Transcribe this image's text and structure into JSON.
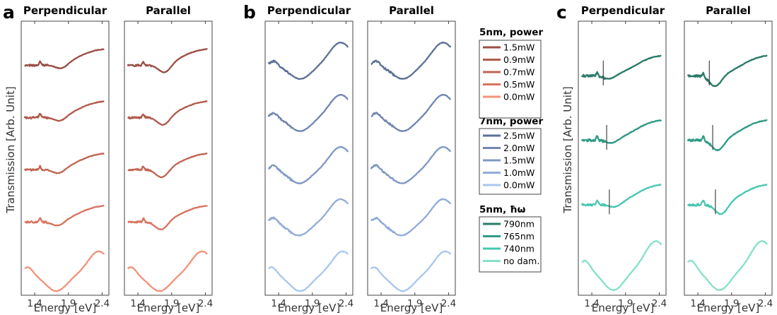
{
  "chart_data": [
    {
      "type": "line",
      "panel_label": "a",
      "ylabel": "Transmission [Arb. Unit]",
      "subplots": [
        {
          "title": "Perpendicular",
          "xlabel": "Energy [eV]",
          "xlim": [
            1.2,
            2.5
          ],
          "xticks": [
            1.4,
            1.9,
            2.4
          ],
          "xtick_labels": [
            "1.4",
            "1.9",
            "2.4"
          ],
          "dip_scale": 0.55
        },
        {
          "title": "Parallel",
          "xlabel": "Energy [eV]",
          "xlim": [
            1.2,
            2.5
          ],
          "xticks": [
            1.4,
            1.9,
            2.4
          ],
          "xtick_labels": [
            "1.4",
            "1.9",
            "2.4"
          ],
          "dip_scale": 1.0
        }
      ],
      "series": [
        {
          "name": "1.5mW",
          "color": "#9b4f46",
          "kind": "damaged",
          "dip_energy": 1.8,
          "markers": []
        },
        {
          "name": "0.9mW",
          "color": "#b05a4c",
          "kind": "damaged",
          "dip_energy": 1.78,
          "markers": []
        },
        {
          "name": "0.7mW",
          "color": "#c06553",
          "kind": "damaged",
          "dip_energy": 1.76,
          "markers": []
        },
        {
          "name": "0.5mW",
          "color": "#d8735f",
          "kind": "damaged",
          "dip_energy": 1.75,
          "markers": []
        },
        {
          "name": "0.0mW",
          "color": "#f1937a",
          "kind": "undamaged",
          "dip_energy": 1.72,
          "markers": []
        }
      ]
    },
    {
      "type": "line",
      "panel_label": "b",
      "ylabel": "",
      "subplots": [
        {
          "title": "Perpendicular",
          "xlabel": "Energy [eV]",
          "xlim": [
            1.2,
            2.5
          ],
          "xticks": [
            1.4,
            1.9,
            2.4
          ],
          "xtick_labels": [
            "1.4",
            "1.9",
            "2.4"
          ],
          "dip_scale": 1.0
        },
        {
          "title": "Parallel",
          "xlabel": "Energy [eV]",
          "xlim": [
            1.2,
            2.5
          ],
          "xticks": [
            1.4,
            1.9,
            2.4
          ],
          "xtick_labels": [
            "1.4",
            "1.9",
            "2.4"
          ],
          "dip_scale": 1.0
        }
      ],
      "series": [
        {
          "name": "2.5mW",
          "color": "#5e7198",
          "kind": "blue",
          "dip_energy": 1.72,
          "markers": []
        },
        {
          "name": "2.0mW",
          "color": "#7186af",
          "kind": "blue",
          "dip_energy": 1.72,
          "markers": []
        },
        {
          "name": "1.5mW",
          "color": "#7f98c5",
          "kind": "blue",
          "dip_energy": 1.71,
          "markers": []
        },
        {
          "name": "1.0mW",
          "color": "#92acd8",
          "kind": "blue",
          "dip_energy": 1.7,
          "markers": []
        },
        {
          "name": "0.0mW",
          "color": "#aac6ec",
          "kind": "undamaged",
          "dip_energy": 1.7,
          "markers": []
        }
      ]
    },
    {
      "type": "line",
      "panel_label": "c",
      "ylabel": "Transmission [Arb. Unit]",
      "subplots": [
        {
          "title": "Perpendicular",
          "xlabel": "Energy [eV]",
          "xlim": [
            1.2,
            2.5
          ],
          "xticks": [
            1.4,
            1.9,
            2.4
          ],
          "xtick_labels": [
            "1.4",
            "1.9",
            "2.4"
          ],
          "dip_scale": 0.35
        },
        {
          "title": "Parallel",
          "xlabel": "Energy [eV]",
          "xlim": [
            1.2,
            2.5
          ],
          "xticks": [
            1.4,
            1.9,
            2.4
          ],
          "xtick_labels": [
            "1.4",
            "1.9",
            "2.4"
          ],
          "dip_scale": 1.0
        }
      ],
      "series": [
        {
          "name": "790nm",
          "color": "#2a7a6a",
          "kind": "damaged",
          "dip_energy": 1.66,
          "markers": [
            1.57,
            1.57
          ]
        },
        {
          "name": "765nm",
          "color": "#2f9a86",
          "kind": "damaged",
          "dip_energy": 1.7,
          "markers": [
            1.62,
            1.62
          ]
        },
        {
          "name": "740nm",
          "color": "#48c7b0",
          "kind": "damaged",
          "dip_energy": 1.75,
          "markers": [
            1.66,
            1.66
          ]
        },
        {
          "name": "no dam.",
          "color": "#86e0cb",
          "kind": "undamaged",
          "dip_energy": 1.74,
          "markers": []
        }
      ]
    }
  ],
  "legend": {
    "groups": [
      {
        "title": "5nm, power",
        "entries": [
          {
            "label": "1.5mW",
            "color": "#9b4f46"
          },
          {
            "label": "0.9mW",
            "color": "#b05a4c"
          },
          {
            "label": "0.7mW",
            "color": "#c06553"
          },
          {
            "label": "0.5mW",
            "color": "#d8735f"
          },
          {
            "label": "0.0mW",
            "color": "#f1937a"
          }
        ]
      },
      {
        "title": "7nm, power",
        "entries": [
          {
            "label": "2.5mW",
            "color": "#5e7198"
          },
          {
            "label": "2.0mW",
            "color": "#7186af"
          },
          {
            "label": "1.5mW",
            "color": "#7f98c5"
          },
          {
            "label": "1.0mW",
            "color": "#92acd8"
          },
          {
            "label": "0.0mW",
            "color": "#aac6ec"
          }
        ]
      },
      {
        "title": "5nm, ħω",
        "entries": [
          {
            "label": "790nm",
            "color": "#2a7a6a"
          },
          {
            "label": "765nm",
            "color": "#2f9a86"
          },
          {
            "label": "740nm",
            "color": "#48c7b0"
          },
          {
            "label": "no dam.",
            "color": "#86e0cb"
          }
        ]
      }
    ]
  }
}
